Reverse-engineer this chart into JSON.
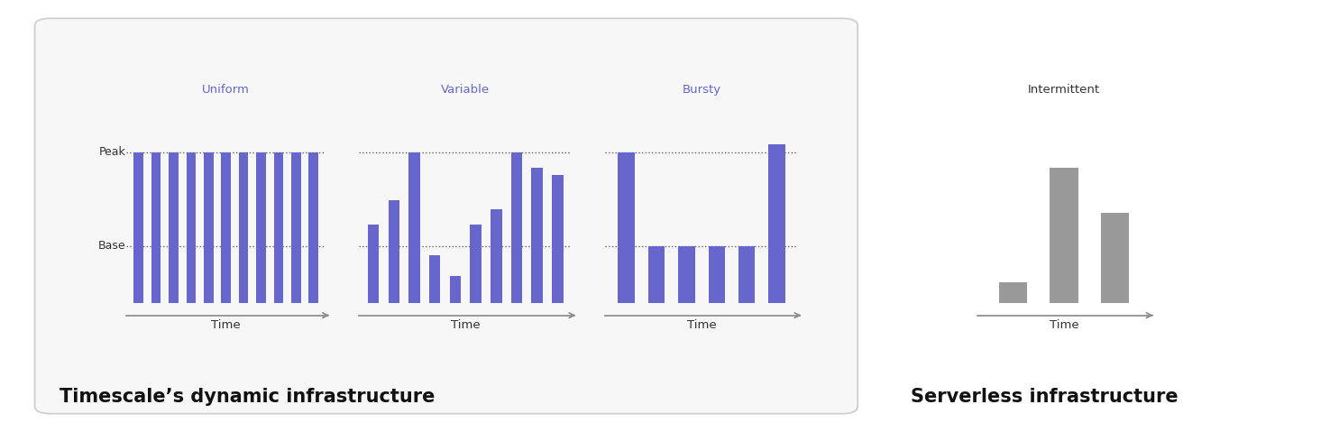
{
  "bg_color": "#ffffff",
  "box_color": "#f7f7f7",
  "box_edge_color": "#cccccc",
  "purple": "#6666cc",
  "gray": "#999999",
  "dark_gray": "#666666",
  "label_color": "#333333",
  "axis_color": "#888888",
  "panel_title": "Timescale’s dynamic infrastructure",
  "serverless_title": "Serverless infrastructure",
  "uniform_label": "Uniform",
  "variable_label": "Variable",
  "bursty_label": "Bursty",
  "intermittent_label": "Intermittent",
  "peak_label": "Peak",
  "base_label": "Base",
  "time_label": "Time",
  "peak_level": 1.0,
  "base_level": 0.38,
  "uniform_bars": [
    1.0,
    1.0,
    1.0,
    1.0,
    1.0,
    1.0,
    1.0,
    1.0,
    1.0,
    1.0,
    1.0
  ],
  "variable_bars": [
    0.52,
    0.68,
    1.0,
    0.32,
    0.18,
    0.52,
    0.62,
    1.0,
    0.9,
    0.85
  ],
  "bursty_bars": [
    1.0,
    0.38,
    0.38,
    0.38,
    0.38,
    1.05
  ],
  "intermittent_bars": [
    0.14,
    0.9,
    0.6
  ]
}
